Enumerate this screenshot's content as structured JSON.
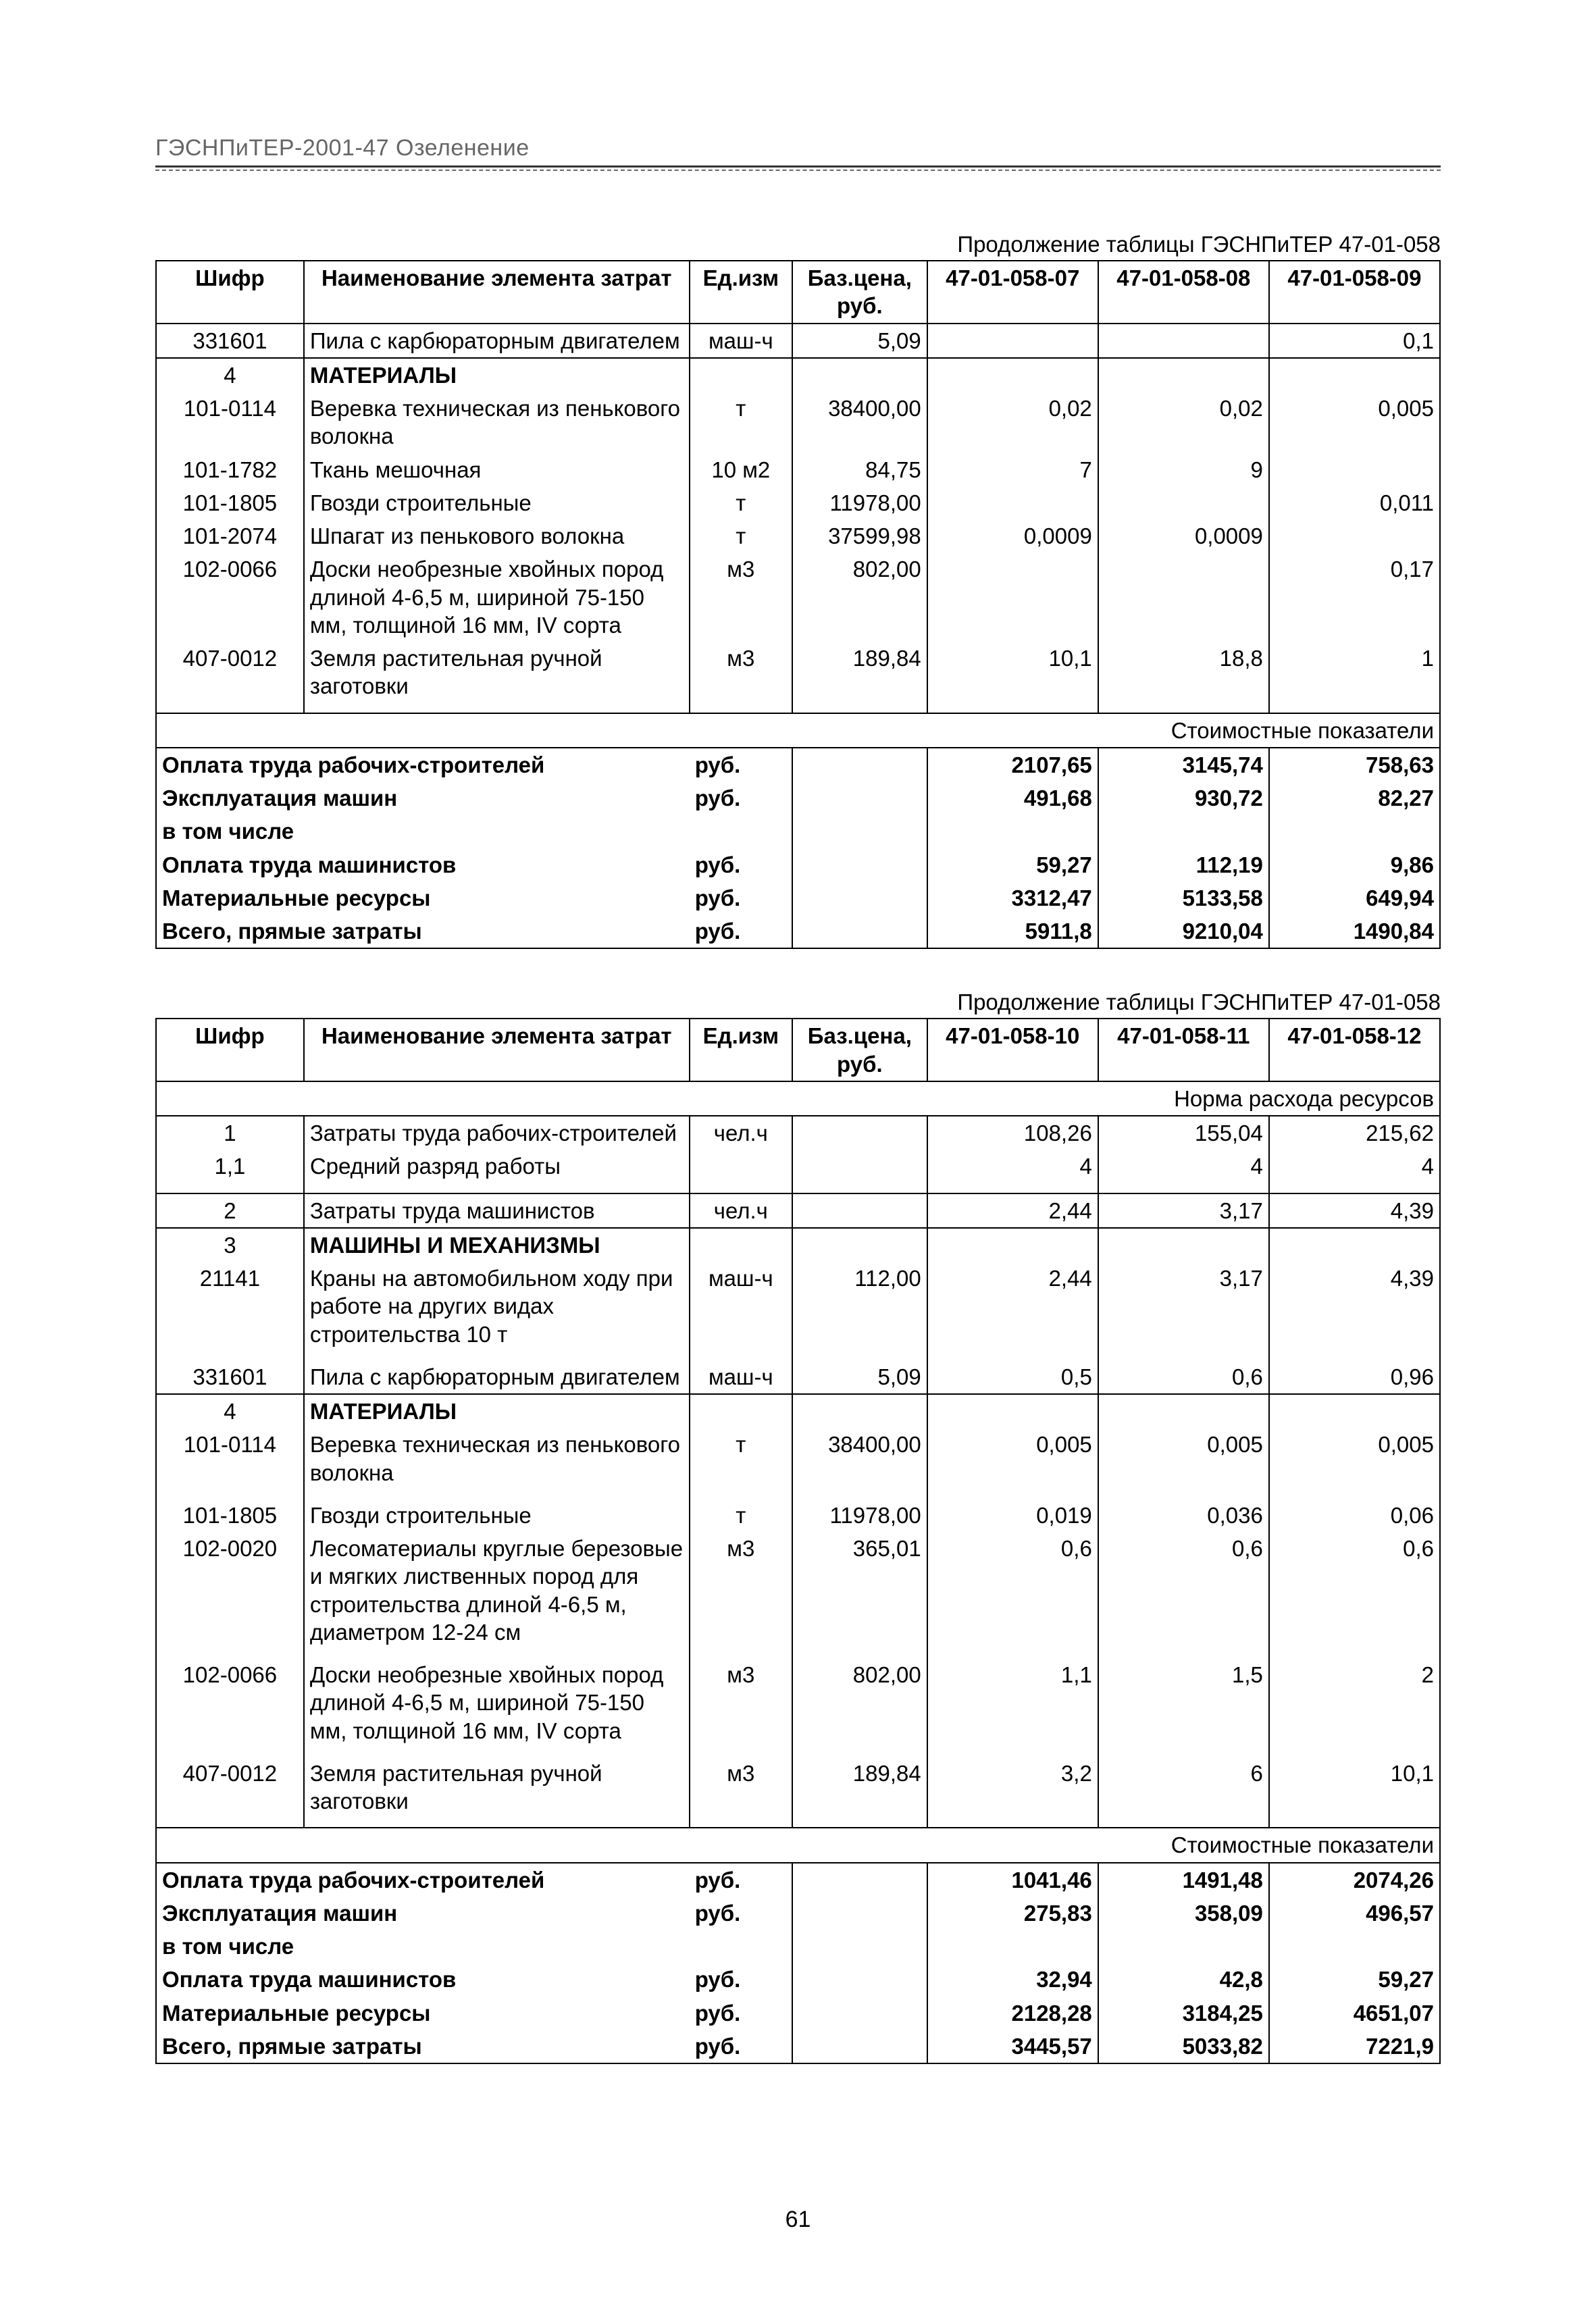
{
  "header": "ГЭСНПиТЕР-2001-47 Озеленение",
  "pageNumber": "61",
  "tableA": {
    "caption": "Продолжение таблицы ГЭСНПиТЕР 47-01-058",
    "headers": {
      "c1": "Шифр",
      "c2": "Наименование элемента затрат",
      "c3": "Ед.изм",
      "c4": "Баз.цена, руб.",
      "c5": "47-01-058-07",
      "c6": "47-01-058-08",
      "c7": "47-01-058-09"
    },
    "rows": [
      {
        "c1": "331601",
        "c2": "Пила с карбюраторным двигателем",
        "c3": "маш-ч",
        "c4": "5,09",
        "c5": "",
        "c6": "",
        "c7": "0,1",
        "sep": true
      },
      {
        "c1": "4",
        "c2": "МАТЕРИАЛЫ",
        "bold": true,
        "first": true
      },
      {
        "c1": "101-0114",
        "c2": "Веревка техническая из пенькового волокна",
        "c3": "т",
        "c4": "38400,00",
        "c5": "0,02",
        "c6": "0,02",
        "c7": "0,005"
      },
      {
        "c1": "101-1782",
        "c2": "Ткань мешочная",
        "c3": "10 м2",
        "c4": "84,75",
        "c5": "7",
        "c6": "9",
        "c7": ""
      },
      {
        "c1": "101-1805",
        "c2": "Гвозди строительные",
        "c3": "т",
        "c4": "11978,00",
        "c5": "",
        "c6": "",
        "c7": "0,011"
      },
      {
        "c1": "101-2074",
        "c2": "Шпагат из пенькового волокна",
        "c3": "т",
        "c4": "37599,98",
        "c5": "0,0009",
        "c6": "0,0009",
        "c7": ""
      },
      {
        "c1": "102-0066",
        "c2": "Доски необрезные хвойных пород длиной 4-6,5 м, шириной 75-150 мм, толщиной 16 мм, IV сорта",
        "c3": "м3",
        "c4": "802,00",
        "c5": "",
        "c6": "",
        "c7": "0,17"
      },
      {
        "c1": "407-0012",
        "c2": "Земля растительная ручной заготовки",
        "c3": "м3",
        "c4": "189,84",
        "c5": "10,1",
        "c6": "18,8",
        "c7": "1",
        "pad": true,
        "last": true
      }
    ],
    "costHeader": "Стоимостные показатели",
    "costRows": [
      {
        "label": "Оплата труда рабочих-строителей",
        "unit": "руб.",
        "c5": "2107,65",
        "c6": "3145,74",
        "c7": "758,63",
        "bold": true,
        "first": true
      },
      {
        "label": "Эксплуатация машин",
        "unit": "руб.",
        "c5": "491,68",
        "c6": "930,72",
        "c7": "82,27",
        "bold": true
      },
      {
        "label": "в том числе",
        "unit": "",
        "c5": "",
        "c6": "",
        "c7": "",
        "bold": true
      },
      {
        "label": "Оплата труда машинистов",
        "unit": "руб.",
        "c5": "59,27",
        "c6": "112,19",
        "c7": "9,86",
        "bold": true
      },
      {
        "label": "Материальные ресурсы",
        "unit": "руб.",
        "c5": "3312,47",
        "c6": "5133,58",
        "c7": "649,94",
        "bold": true
      },
      {
        "label": "Всего, прямые затраты",
        "unit": "руб.",
        "c5": "5911,8",
        "c6": "9210,04",
        "c7": "1490,84",
        "bold": true,
        "last": true
      }
    ]
  },
  "tableB": {
    "caption": "Продолжение таблицы ГЭСНПиТЕР 47-01-058",
    "headers": {
      "c1": "Шифр",
      "c2": "Наименование элемента затрат",
      "c3": "Ед.изм",
      "c4": "Баз.цена, руб.",
      "c5": "47-01-058-10",
      "c6": "47-01-058-11",
      "c7": "47-01-058-12"
    },
    "normHeader": "Норма расхода ресурсов",
    "rows": [
      {
        "c1": "1",
        "c2": "Затраты труда рабочих-строителей",
        "c3": "чел.ч",
        "c4": "",
        "c5": "108,26",
        "c6": "155,04",
        "c7": "215,62",
        "sepTop": true,
        "first": true
      },
      {
        "c1": "1,1",
        "c2": "Средний разряд работы",
        "c3": "",
        "c4": "",
        "c5": "4",
        "c6": "4",
        "c7": "4",
        "pad": true,
        "last": true
      },
      {
        "c1": "2",
        "c2": "Затраты труда машинистов",
        "c3": "чел.ч",
        "c4": "",
        "c5": "2,44",
        "c6": "3,17",
        "c7": "4,39",
        "sep": true
      },
      {
        "c1": "3",
        "c2": "МАШИНЫ И МЕХАНИЗМЫ",
        "bold": true,
        "sepTop": true,
        "first": true
      },
      {
        "c1": "21141",
        "c2": "Краны на автомобильном ходу при работе на других видах строительства 10 т",
        "c3": "маш-ч",
        "c4": "112,00",
        "c5": "2,44",
        "c6": "3,17",
        "c7": "4,39",
        "pad": true
      },
      {
        "c1": "331601",
        "c2": "Пила с карбюраторным двигателем",
        "c3": "маш-ч",
        "c4": "5,09",
        "c5": "0,5",
        "c6": "0,6",
        "c7": "0,96",
        "last": true
      },
      {
        "c1": "4",
        "c2": "МАТЕРИАЛЫ",
        "bold": true,
        "sepTop": true,
        "first": true
      },
      {
        "c1": "101-0114",
        "c2": "Веревка техническая из пенькового волокна",
        "c3": "т",
        "c4": "38400,00",
        "c5": "0,005",
        "c6": "0,005",
        "c7": "0,005",
        "pad": true
      },
      {
        "c1": "101-1805",
        "c2": "Гвозди строительные",
        "c3": "т",
        "c4": "11978,00",
        "c5": "0,019",
        "c6": "0,036",
        "c7": "0,06"
      },
      {
        "c1": "102-0020",
        "c2": "Лесоматериалы круглые березовые и мягких лиственных пород для строительства длиной 4-6,5 м, диаметром 12-24 см",
        "c3": "м3",
        "c4": "365,01",
        "c5": "0,6",
        "c6": "0,6",
        "c7": "0,6",
        "pad": true
      },
      {
        "c1": "102-0066",
        "c2": "Доски необрезные хвойных пород длиной 4-6,5 м, шириной 75-150 мм, толщиной 16 мм, IV сорта",
        "c3": "м3",
        "c4": "802,00",
        "c5": "1,1",
        "c6": "1,5",
        "c7": "2",
        "pad": true
      },
      {
        "c1": "407-0012",
        "c2": "Земля растительная ручной заготовки",
        "c3": "м3",
        "c4": "189,84",
        "c5": "3,2",
        "c6": "6",
        "c7": "10,1",
        "pad": true,
        "last": true
      }
    ],
    "costHeader": "Стоимостные показатели",
    "costRows": [
      {
        "label": "Оплата труда рабочих-строителей",
        "unit": "руб.",
        "c5": "1041,46",
        "c6": "1491,48",
        "c7": "2074,26",
        "bold": true,
        "first": true
      },
      {
        "label": "Эксплуатация машин",
        "unit": "руб.",
        "c5": "275,83",
        "c6": "358,09",
        "c7": "496,57",
        "bold": true
      },
      {
        "label": "в том числе",
        "unit": "",
        "c5": "",
        "c6": "",
        "c7": "",
        "bold": true
      },
      {
        "label": "Оплата труда машинистов",
        "unit": "руб.",
        "c5": "32,94",
        "c6": "42,8",
        "c7": "59,27",
        "bold": true
      },
      {
        "label": "Материальные ресурсы",
        "unit": "руб.",
        "c5": "2128,28",
        "c6": "3184,25",
        "c7": "4651,07",
        "bold": true
      },
      {
        "label": "Всего, прямые затраты",
        "unit": "руб.",
        "c5": "3445,57",
        "c6": "5033,82",
        "c7": "7221,9",
        "bold": true,
        "last": true
      }
    ]
  }
}
